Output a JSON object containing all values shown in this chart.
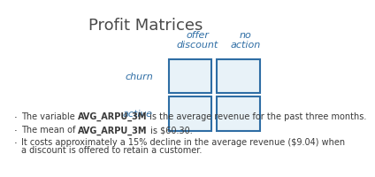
{
  "title": "Profit Matrices",
  "title_fontsize": 13,
  "title_color": "#4a4a4a",
  "col_labels": [
    "offer\ndiscount",
    "no\naction"
  ],
  "row_labels": [
    "churn",
    "active"
  ],
  "col_label_color": "#2e6da4",
  "row_label_color": "#2e6da4",
  "cell_fill": "#e8f2f8",
  "cell_edge": "#2e6da4",
  "bullet_color": "#3a3a3a",
  "text_fontsize": 7.0,
  "label_fontsize": 8.0,
  "background_color": "#ffffff",
  "bullet_char": "·",
  "bullets": [
    {
      "parts": [
        {
          "text": "The variable ",
          "bold": false
        },
        {
          "text": "AVG_ARPU_3M",
          "bold": true
        },
        {
          "text": " is the average revenue for the past three months.",
          "bold": false
        }
      ]
    },
    {
      "parts": [
        {
          "text": "The mean of ",
          "bold": false
        },
        {
          "text": "AVG_ARPU_3M",
          "bold": true
        },
        {
          "text": " is $60.30.",
          "bold": false
        }
      ]
    },
    {
      "parts": [
        {
          "text": "It costs approximately a 15% decline in the average revenue ($9.04) when\na discount is offered to retain a customer.",
          "bold": false
        }
      ]
    }
  ]
}
